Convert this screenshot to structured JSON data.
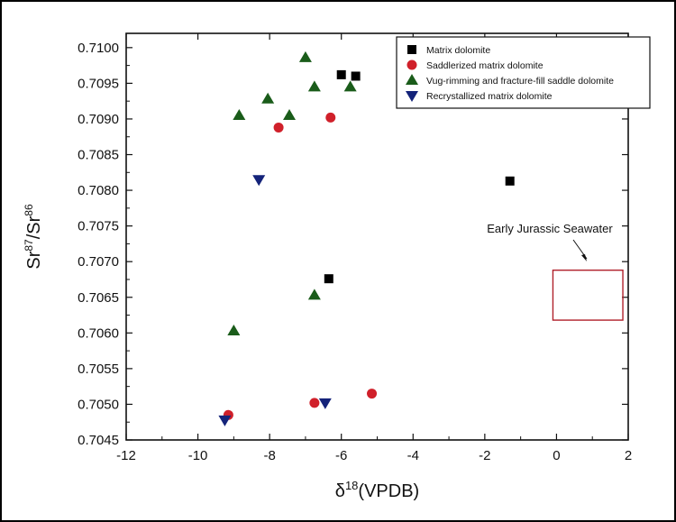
{
  "chart_data": {
    "type": "scatter",
    "title": "",
    "xlabel_base": "δ",
    "xlabel_sup": "18",
    "xlabel_rest": "(VPDB)",
    "ylabel_parts": [
      "Sr",
      "87",
      "/Sr",
      "86"
    ],
    "xlim": [
      -12,
      2
    ],
    "ylim": [
      0.7045,
      0.7102
    ],
    "xticks": [
      -12,
      -10,
      -8,
      -6,
      -4,
      -2,
      0,
      2
    ],
    "yticks": [
      "0.7045",
      "0.7050",
      "0.7055",
      "0.7060",
      "0.7065",
      "0.7070",
      "0.7075",
      "0.7080",
      "0.7085",
      "0.7090",
      "0.7095",
      "0.7100"
    ],
    "grid": false,
    "legend_position": "top-right",
    "series": [
      {
        "name": "Matrix dolomite",
        "marker": "square",
        "color": "#000000",
        "points": [
          [
            -6.0,
            0.70962
          ],
          [
            -5.6,
            0.7096
          ],
          [
            -1.3,
            0.70813
          ],
          [
            -6.35,
            0.70676
          ]
        ]
      },
      {
        "name": "Saddlerized matrix dolomite",
        "marker": "circle",
        "color": "#d0202a",
        "points": [
          [
            -6.3,
            0.70902
          ],
          [
            -7.75,
            0.70888
          ],
          [
            -5.15,
            0.70515
          ],
          [
            -6.75,
            0.70502
          ],
          [
            -9.15,
            0.70485
          ]
        ]
      },
      {
        "name": "Vug-rimming and fracture-fill saddle dolomite",
        "marker": "triangle-up",
        "color": "#1a5c1a",
        "points": [
          [
            -7.0,
            0.70986
          ],
          [
            -6.75,
            0.70945
          ],
          [
            -5.75,
            0.70945
          ],
          [
            -8.05,
            0.70928
          ],
          [
            -8.85,
            0.70905
          ],
          [
            -7.45,
            0.70905
          ],
          [
            -6.75,
            0.70653
          ],
          [
            -9.0,
            0.70603
          ]
        ]
      },
      {
        "name": "Recrystallized matrix dolomite",
        "marker": "triangle-down",
        "color": "#14237a",
        "points": [
          [
            -8.3,
            0.70815
          ],
          [
            -6.45,
            0.70502
          ],
          [
            -9.25,
            0.70478
          ]
        ]
      }
    ],
    "annotations": [
      {
        "text": "Early Jurassic Seawater",
        "box": {
          "x0": -0.1,
          "x1": 1.85,
          "y0": 0.70618,
          "y1": 0.70688
        },
        "box_color": "#b0202a"
      }
    ]
  }
}
